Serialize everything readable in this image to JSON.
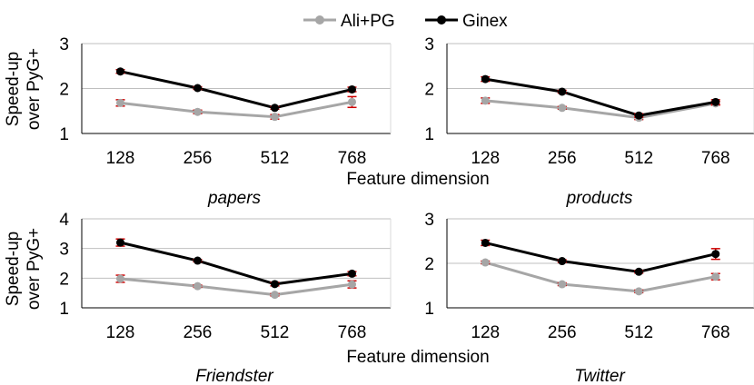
{
  "legend": [
    {
      "name": "Ali+PG",
      "color": "#a6a6a6"
    },
    {
      "name": "Ginex",
      "color": "#000000"
    }
  ],
  "colors": {
    "errorbar": "#cc0000",
    "gridline": "#bfbfbf",
    "axis": "#000000"
  },
  "chart_data": [
    {
      "type": "line",
      "title": "papers",
      "x": [
        "128",
        "256",
        "512",
        "768"
      ],
      "xlabel": "Feature dimension",
      "ylabel": "Speed-up over PyG+",
      "ylim": [
        1,
        3
      ],
      "yticks": [
        1,
        2,
        3
      ],
      "grid": true,
      "legend_position": "top-center",
      "series": [
        {
          "name": "Ali+PG",
          "values": [
            1.68,
            1.48,
            1.37,
            1.7
          ],
          "errors": [
            0.07,
            0.04,
            0.05,
            0.12
          ]
        },
        {
          "name": "Ginex",
          "values": [
            2.38,
            2.01,
            1.57,
            1.98
          ],
          "errors": [
            0.04,
            0.03,
            0.03,
            0.05
          ]
        }
      ]
    },
    {
      "type": "line",
      "title": "products",
      "x": [
        "128",
        "256",
        "512",
        "768"
      ],
      "xlabel": "Feature dimension",
      "ylabel": "",
      "ylim": [
        1,
        3
      ],
      "yticks": [
        1,
        2,
        3
      ],
      "grid": true,
      "series": [
        {
          "name": "Ali+PG",
          "values": [
            1.73,
            1.57,
            1.35,
            1.67
          ],
          "errors": [
            0.06,
            0.03,
            0.04,
            0.04
          ]
        },
        {
          "name": "Ginex",
          "values": [
            2.21,
            1.93,
            1.4,
            1.7
          ],
          "errors": [
            0.05,
            0.03,
            0.04,
            0.05
          ]
        }
      ]
    },
    {
      "type": "line",
      "title": "Friendster",
      "x": [
        "128",
        "256",
        "512",
        "768"
      ],
      "xlabel": "Feature dimension",
      "ylabel": "Speed-up over PyG+",
      "ylim": [
        1,
        4
      ],
      "yticks": [
        1,
        2,
        3,
        4
      ],
      "grid": true,
      "series": [
        {
          "name": "Ali+PG",
          "values": [
            1.98,
            1.73,
            1.44,
            1.79
          ],
          "errors": [
            0.12,
            0.04,
            0.04,
            0.12
          ]
        },
        {
          "name": "Ginex",
          "values": [
            3.2,
            2.59,
            1.8,
            2.15
          ],
          "errors": [
            0.12,
            0.04,
            0.06,
            0.07
          ]
        }
      ]
    },
    {
      "type": "line",
      "title": "Twitter",
      "x": [
        "128",
        "256",
        "512",
        "768"
      ],
      "xlabel": "",
      "ylabel": "",
      "ylim": [
        1,
        3
      ],
      "yticks": [
        1,
        2,
        3
      ],
      "grid": true,
      "series": [
        {
          "name": "Ali+PG",
          "values": [
            2.02,
            1.53,
            1.37,
            1.7
          ],
          "errors": [
            0.03,
            0.03,
            0.03,
            0.07
          ]
        },
        {
          "name": "Ginex",
          "values": [
            2.46,
            2.05,
            1.81,
            2.21
          ],
          "errors": [
            0.06,
            0.03,
            0.03,
            0.12
          ]
        }
      ]
    }
  ]
}
